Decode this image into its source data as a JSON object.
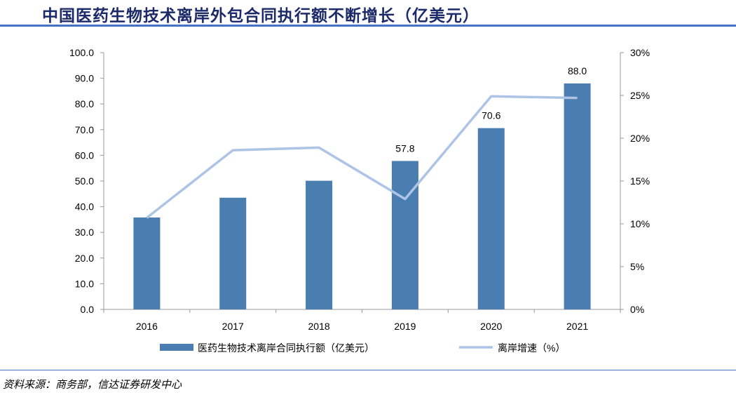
{
  "title": "中国医药生物技术离岸外包合同执行额不断增长（亿美元）",
  "source": "资料来源：商务部，信达证券研发中心",
  "chart_data": {
    "type": "bar+line",
    "categories": [
      "2016",
      "2017",
      "2018",
      "2019",
      "2020",
      "2021"
    ],
    "series": [
      {
        "name": "医药生物技术离岸合同执行额（亿美元）",
        "type": "bar",
        "axis": "left",
        "color": "#4a7eb0",
        "values": [
          35.8,
          43.5,
          50.1,
          57.8,
          70.6,
          88.0
        ],
        "data_labels": [
          null,
          null,
          null,
          "57.8",
          "70.6",
          "88.0"
        ]
      },
      {
        "name": "离岸增速（%）",
        "type": "line",
        "axis": "right",
        "color": "#aec4e6",
        "values": [
          10.7,
          18.6,
          18.9,
          12.9,
          24.9,
          24.7
        ]
      }
    ],
    "left_axis": {
      "range": [
        0,
        100
      ],
      "ticks": [
        "0.0",
        "10.0",
        "20.0",
        "30.0",
        "40.0",
        "50.0",
        "60.0",
        "70.0",
        "80.0",
        "90.0",
        "100.0"
      ]
    },
    "right_axis": {
      "range": [
        0,
        30
      ],
      "ticks": [
        "0%",
        "5%",
        "10%",
        "15%",
        "20%",
        "25%",
        "30%"
      ]
    },
    "grid": false,
    "legend": "bottom"
  }
}
